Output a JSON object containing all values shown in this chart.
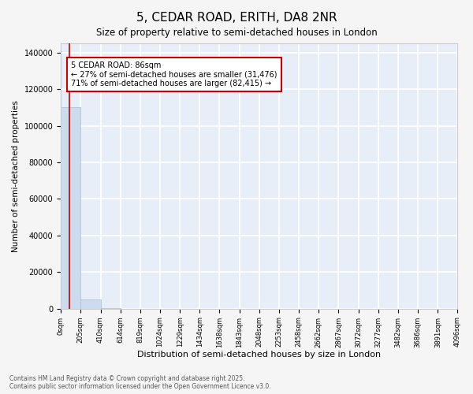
{
  "title": "5, CEDAR ROAD, ERITH, DA8 2NR",
  "subtitle": "Size of property relative to semi-detached houses in London",
  "xlabel": "Distribution of semi-detached houses by size in London",
  "ylabel": "Number of semi-detached properties",
  "property_size": 86,
  "property_label": "5 CEDAR ROAD: 86sqm",
  "pct_smaller": 27,
  "pct_larger": 71,
  "n_smaller": 31476,
  "n_larger": 82415,
  "bar_color": "#ccdcee",
  "bar_edge_color": "#aabcce",
  "vline_color": "#cc0000",
  "annotation_box_color": "#cc0000",
  "background_color": "#f5f5f5",
  "plot_bg_color": "#e8eef8",
  "grid_color": "#ffffff",
  "bin_edges": [
    0,
    205,
    410,
    614,
    819,
    1024,
    1229,
    1434,
    1638,
    1843,
    2048,
    2253,
    2458,
    2662,
    2867,
    3072,
    3277,
    3482,
    3686,
    3891,
    4096
  ],
  "bin_labels": [
    "0sqm",
    "205sqm",
    "410sqm",
    "614sqm",
    "819sqm",
    "1024sqm",
    "1229sqm",
    "1434sqm",
    "1638sqm",
    "1843sqm",
    "2048sqm",
    "2253sqm",
    "2458sqm",
    "2662sqm",
    "2867sqm",
    "3072sqm",
    "3277sqm",
    "3482sqm",
    "3686sqm",
    "3891sqm",
    "4096sqm"
  ],
  "bar_heights": [
    110000,
    5000,
    500,
    100,
    50,
    30,
    20,
    15,
    10,
    8,
    6,
    5,
    4,
    3,
    2,
    2,
    1,
    1,
    1,
    1
  ],
  "ylim": [
    0,
    145000
  ],
  "yticks": [
    0,
    20000,
    40000,
    60000,
    80000,
    100000,
    120000,
    140000
  ],
  "footer": "Contains HM Land Registry data © Crown copyright and database right 2025.\nContains public sector information licensed under the Open Government Licence v3.0."
}
